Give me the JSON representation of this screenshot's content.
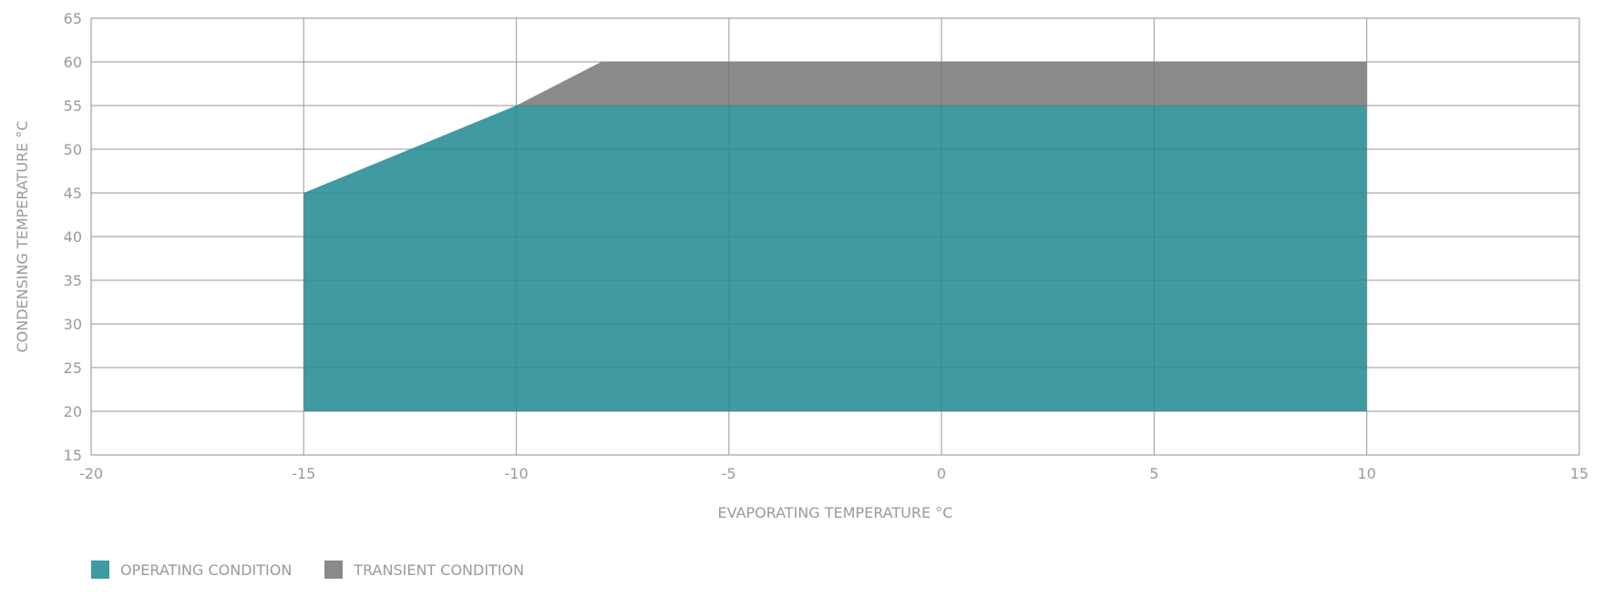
{
  "chart_data": {
    "type": "area",
    "xlabel": "EVAPORATING TEMPERATURE °C",
    "ylabel": "CONDENSING TEMPERATURE °C",
    "xlim": [
      -20,
      15
    ],
    "ylim": [
      15,
      65
    ],
    "xticks": [
      -20,
      -15,
      -10,
      -5,
      0,
      5,
      10,
      15
    ],
    "yticks": [
      15,
      20,
      25,
      30,
      35,
      40,
      45,
      50,
      55,
      60,
      65
    ],
    "grid": true,
    "legend_position": "bottom-left",
    "series": [
      {
        "name": "OPERATING CONDITION",
        "color": "#3f9aa2",
        "polygon": [
          [
            -15,
            20
          ],
          [
            -15,
            45
          ],
          [
            -10,
            55
          ],
          [
            10,
            55
          ],
          [
            10,
            20
          ]
        ]
      },
      {
        "name": "TRANSIENT CONDITION",
        "color": "#8a8a8a",
        "polygon": [
          [
            -10,
            55
          ],
          [
            -8,
            60
          ],
          [
            10,
            60
          ],
          [
            10,
            55
          ]
        ]
      }
    ]
  }
}
